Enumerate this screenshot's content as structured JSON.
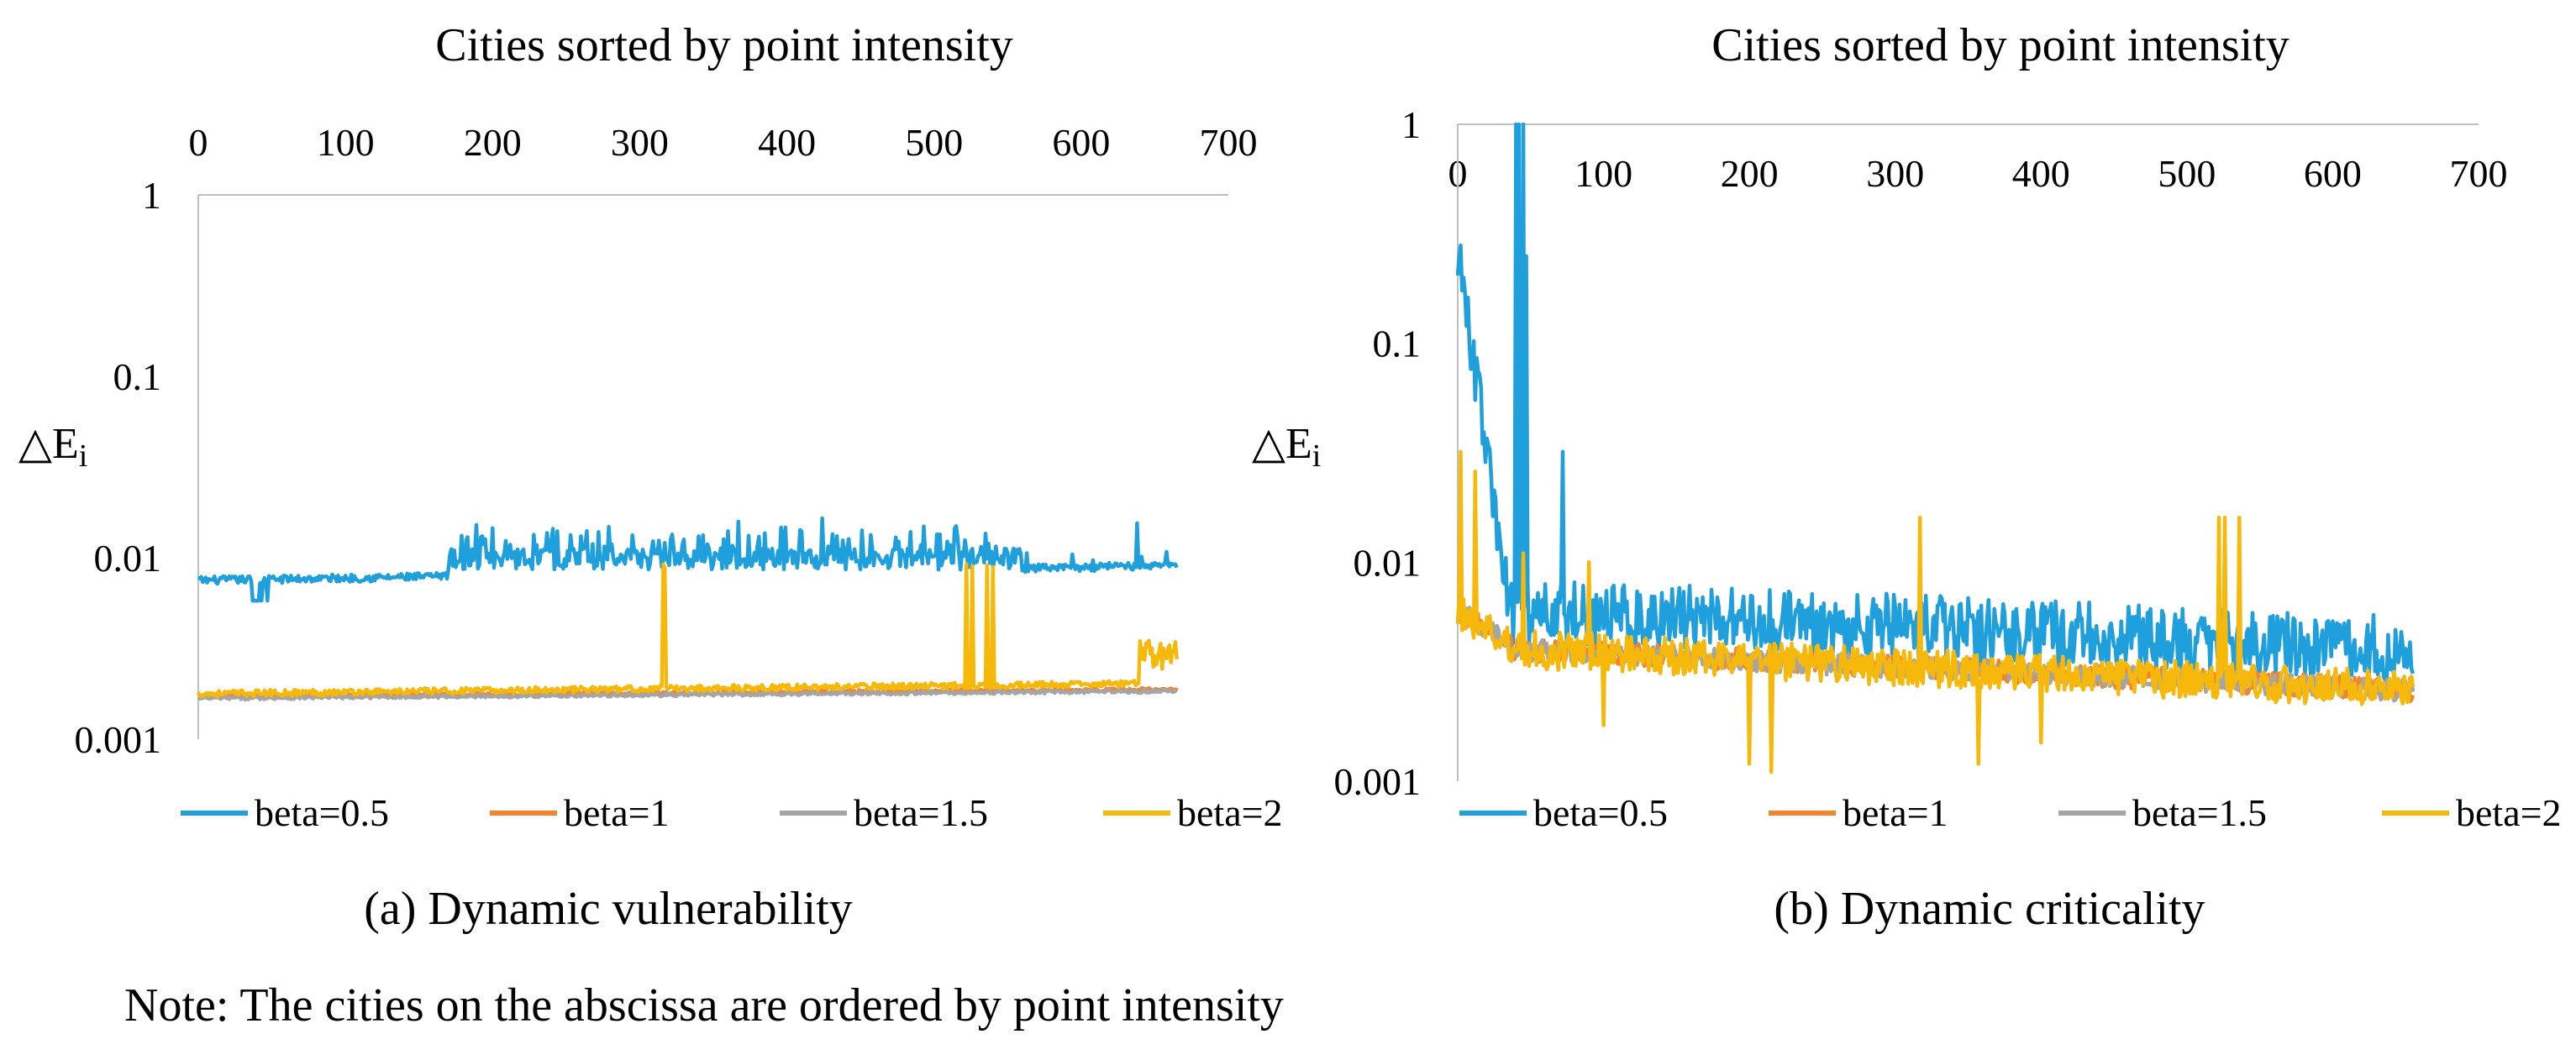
{
  "chart_data": [
    {
      "type": "line",
      "panel": "a",
      "title": "Cities sorted by point intensity",
      "caption": "(a) Dynamic vulnerability",
      "ylabel": "△E",
      "ylabel_sub": "i",
      "xlim": [
        0,
        700
      ],
      "ylim": [
        0.001,
        1
      ],
      "yscale": "log",
      "x_axis_position": "top",
      "x_ticks": [
        "0",
        "100",
        "200",
        "300",
        "400",
        "500",
        "600",
        "700"
      ],
      "y_ticks": [
        "1",
        "0.1",
        "0.01",
        "0.001"
      ],
      "n_points": 666,
      "series": [
        {
          "name": "beta=0.5",
          "color": "#1f9fdb",
          "base": 0.0075,
          "trend": 0.0015,
          "noise": 0.05,
          "bursts": [
            [
              170,
              560,
              0.011,
              0.005
            ],
            [
              560,
              666,
              0.0088,
              0.002
            ]
          ],
          "dips": [
            [
              36,
              48,
              0.0058
            ]
          ],
          "spikes": [
            [
              360,
              0.014
            ],
            [
              424,
              0.0165
            ],
            [
              521,
              0.0125
            ],
            [
              638,
              0.0155
            ]
          ]
        },
        {
          "name": "beta=1",
          "color": "#f4832a",
          "base": 0.00172,
          "trend": 0.00016,
          "noise": 0.02,
          "bursts": [],
          "dips": [],
          "spikes": []
        },
        {
          "name": "beta=1.5",
          "color": "#a5a5a5",
          "base": 0.00168,
          "trend": 0.00016,
          "noise": 0.02,
          "bursts": [],
          "dips": [],
          "spikes": []
        },
        {
          "name": "beta=2",
          "color": "#f6b90b",
          "base": 0.00178,
          "trend": 0.00025,
          "noise": 0.04,
          "bursts": [
            [
              640,
              666,
              0.0031,
              0.0008
            ]
          ],
          "dips": [],
          "spikes": [
            [
              316,
              0.0092
            ],
            [
              317,
              0.0088
            ],
            [
              522,
              0.0092
            ],
            [
              526,
              0.009
            ],
            [
              536,
              0.0091
            ],
            [
              540,
              0.0089
            ]
          ]
        }
      ]
    },
    {
      "type": "line",
      "panel": "b",
      "title": "Cities sorted by point intensity",
      "caption": "(b) Dynamic criticality",
      "ylabel": "△E",
      "ylabel_sub": "i",
      "xlim": [
        0,
        700
      ],
      "ylim": [
        0.001,
        1
      ],
      "yscale": "log",
      "x_axis_position": "top",
      "x_ticks": [
        "0",
        "100",
        "200",
        "300",
        "400",
        "500",
        "600",
        "700"
      ],
      "y_ticks": [
        "1",
        "0.1",
        "0.01",
        "0.001"
      ],
      "n_points": 656,
      "series": [
        {
          "name": "beta=0.5",
          "color": "#1f9fdb",
          "start": 0.28,
          "mid_x": 35,
          "mid_v": 0.006,
          "end": 0.004,
          "noise": 0.35,
          "spikes": [
            [
              2,
              0.28
            ],
            [
              4,
              0.2
            ],
            [
              12,
              0.055
            ],
            [
              40,
              1.0
            ],
            [
              42,
              1.0
            ],
            [
              45,
              1.0
            ],
            [
              47,
              0.25
            ],
            [
              72,
              0.032
            ],
            [
              90,
              0.007
            ]
          ]
        },
        {
          "name": "beta=1",
          "color": "#f4832a",
          "start": 0.006,
          "mid_x": 40,
          "mid_v": 0.004,
          "end": 0.0026,
          "noise": 0.12,
          "spikes": []
        },
        {
          "name": "beta=1.5",
          "color": "#a5a5a5",
          "start": 0.006,
          "mid_x": 40,
          "mid_v": 0.004,
          "end": 0.0026,
          "noise": 0.12,
          "spikes": []
        },
        {
          "name": "beta=2",
          "color": "#f6b90b",
          "start": 0.006,
          "mid_x": 40,
          "mid_v": 0.004,
          "end": 0.0026,
          "noise": 0.2,
          "spikes": [
            [
              2,
              0.032
            ],
            [
              12,
              0.026
            ],
            [
              45,
              0.011
            ],
            [
              90,
              0.01
            ],
            [
              317,
              0.016
            ],
            [
              522,
              0.016
            ],
            [
              526,
              0.016
            ],
            [
              536,
              0.016
            ],
            [
              200,
              0.0012
            ],
            [
              357,
              0.0012
            ],
            [
              400,
              0.0015
            ],
            [
              100,
              0.0018
            ],
            [
              215,
              0.0011
            ]
          ]
        }
      ]
    }
  ],
  "legend": [
    {
      "label": "beta=0.5",
      "color": "#1f9fdb"
    },
    {
      "label": "beta=1",
      "color": "#f4832a"
    },
    {
      "label": "beta=1.5",
      "color": "#a5a5a5"
    },
    {
      "label": "beta=2",
      "color": "#f6b90b"
    }
  ],
  "note": "Note: The cities on the abscissa are ordered by point intensity"
}
